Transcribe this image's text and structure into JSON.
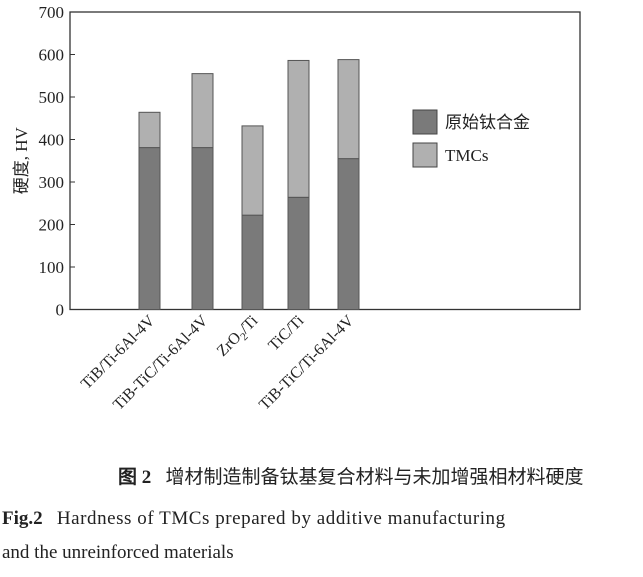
{
  "chart_data": {
    "type": "bar",
    "stacked": true,
    "categories": [
      "TiB/Ti-6Al-4V",
      "TiB-TiC/Ti-6Al-4V",
      "ZrO2/Ti",
      "TiC/Ti",
      "TiB-TiC/Ti-6Al-4V"
    ],
    "category_labels_rich": [
      [
        "TiB/Ti-6Al-4V"
      ],
      [
        "TiB-TiC/Ti-6Al-4V"
      ],
      [
        "ZrO",
        "2",
        "/Ti"
      ],
      [
        "TiC/Ti"
      ],
      [
        "TiB-TiC/Ti-6Al-4V"
      ]
    ],
    "series": [
      {
        "name": "原始钛合金",
        "values": [
          381,
          381,
          222,
          264,
          355
        ],
        "color": "#7a7a7a"
      },
      {
        "name": "TMCs",
        "values": [
          83,
          174,
          210,
          322,
          233
        ],
        "color": "#b0b0b0"
      }
    ],
    "ylabel": "硬度, HV",
    "ylim": [
      0,
      700
    ],
    "yticks": [
      0,
      100,
      200,
      300,
      400,
      500,
      600,
      700
    ],
    "grid": false,
    "legend": "right"
  },
  "caption": {
    "cn_label": "图 2",
    "cn_text": "增材制造制备钛基复合材料与未加增强相材料硬度",
    "en_label": "Fig.2",
    "en_text_line1": "Hardness of TMCs prepared by additive manufacturing",
    "en_text_line2": "and the unreinforced materials"
  }
}
